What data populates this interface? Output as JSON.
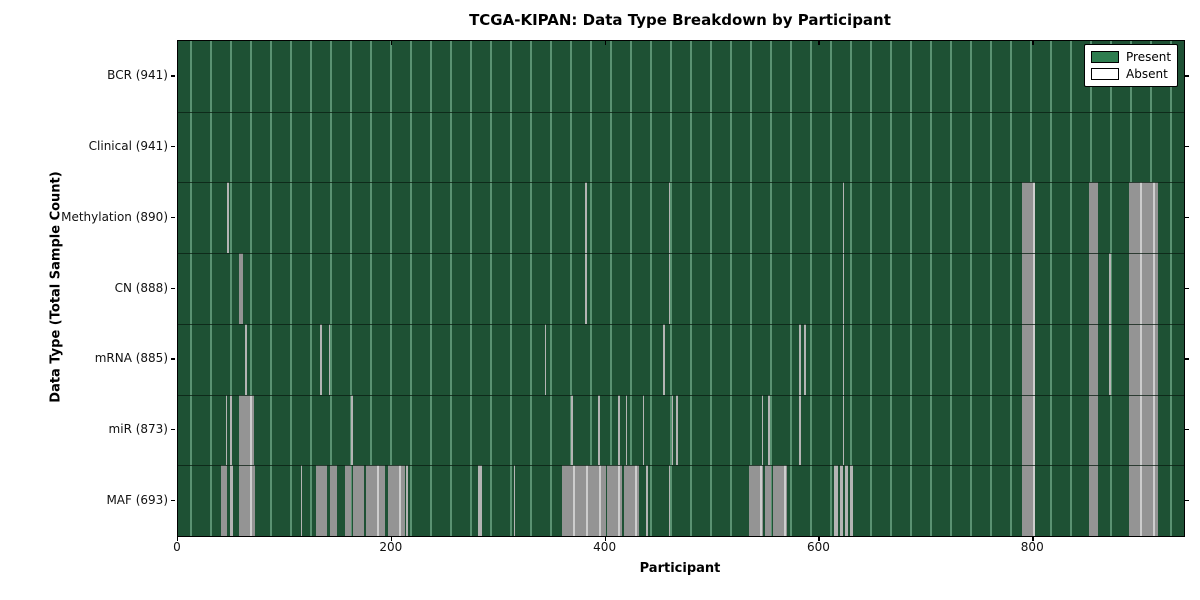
{
  "colors": {
    "present_fill": "#1e5134",
    "grid_line": "#4f8a68",
    "absent_band": "#949494",
    "absent_band_stripe": "#cdcdcd",
    "absent_thin": "#b4b4b4",
    "legend_present_swatch": "#2e7d4f",
    "legend_absent_swatch": "#ffffff"
  },
  "chart_data": {
    "type": "heatmap",
    "title": "TCGA-KIPAN: Data Type Breakdown by Participant",
    "xlabel": "Participant",
    "ylabel": "Data Type (Total Sample Count)",
    "legend": [
      {
        "label": "Present",
        "color": "#2e7d4f"
      },
      {
        "label": "Absent",
        "color": "#ffffff"
      }
    ],
    "legend_position": "upper right",
    "x_range": [
      0,
      941
    ],
    "x_ticks": [
      0,
      200,
      400,
      600,
      800
    ],
    "n_participants": 941,
    "grid": "vertical light-green lines on dark-green present background",
    "rows": [
      {
        "label": "BCR (941)",
        "data_type": "BCR",
        "present_count": 941,
        "absent_ranges": []
      },
      {
        "label": "Clinical (941)",
        "data_type": "Clinical",
        "present_count": 941,
        "absent_ranges": []
      },
      {
        "label": "Methylation (890)",
        "data_type": "Methylation",
        "present_count": 890,
        "absent_ranges": [
          [
            46,
            47
          ],
          [
            381,
            382
          ],
          [
            459,
            460
          ],
          [
            622,
            623
          ],
          [
            789,
            802
          ],
          [
            852,
            861
          ],
          [
            890,
            917
          ]
        ]
      },
      {
        "label": "CN (888)",
        "data_type": "CN",
        "present_count": 888,
        "absent_ranges": [
          [
            57,
            61
          ],
          [
            381,
            382
          ],
          [
            459,
            460
          ],
          [
            622,
            623
          ],
          [
            789,
            802
          ],
          [
            852,
            861
          ],
          [
            871,
            872
          ],
          [
            890,
            917
          ]
        ]
      },
      {
        "label": "mRNA (885)",
        "data_type": "mRNA",
        "present_count": 885,
        "absent_ranges": [
          [
            63,
            64
          ],
          [
            133,
            134
          ],
          [
            141,
            142
          ],
          [
            343,
            344
          ],
          [
            454,
            456
          ],
          [
            581,
            582
          ],
          [
            586,
            587
          ],
          [
            622,
            623
          ],
          [
            789,
            802
          ],
          [
            852,
            861
          ],
          [
            871,
            872
          ],
          [
            890,
            917
          ]
        ]
      },
      {
        "label": "miR (873)",
        "data_type": "miR",
        "present_count": 873,
        "absent_ranges": [
          [
            45,
            46
          ],
          [
            49,
            50
          ],
          [
            57,
            71
          ],
          [
            162,
            163
          ],
          [
            368,
            369
          ],
          [
            393,
            394
          ],
          [
            412,
            413
          ],
          [
            419,
            420
          ],
          [
            435,
            436
          ],
          [
            462,
            463
          ],
          [
            466,
            467
          ],
          [
            546,
            547
          ],
          [
            552,
            553
          ],
          [
            581,
            582
          ],
          [
            622,
            623
          ],
          [
            789,
            802
          ],
          [
            852,
            861
          ],
          [
            890,
            917
          ]
        ]
      },
      {
        "label": "MAF (693)",
        "data_type": "MAF",
        "present_count": 693,
        "absent_ranges": [
          [
            40,
            46
          ],
          [
            49,
            51
          ],
          [
            57,
            72
          ],
          [
            115,
            116
          ],
          [
            129,
            139
          ],
          [
            142,
            149
          ],
          [
            156,
            162
          ],
          [
            164,
            174
          ],
          [
            176,
            194
          ],
          [
            196,
            212
          ],
          [
            213,
            215
          ],
          [
            281,
            284
          ],
          [
            314,
            315
          ],
          [
            359,
            400
          ],
          [
            401,
            415
          ],
          [
            417,
            431
          ],
          [
            438,
            439
          ],
          [
            459,
            460
          ],
          [
            534,
            547
          ],
          [
            549,
            555
          ],
          [
            557,
            570
          ],
          [
            614,
            617
          ],
          [
            619,
            622
          ],
          [
            624,
            627
          ],
          [
            629,
            631
          ],
          [
            789,
            802
          ],
          [
            852,
            861
          ],
          [
            890,
            917
          ]
        ]
      }
    ]
  }
}
